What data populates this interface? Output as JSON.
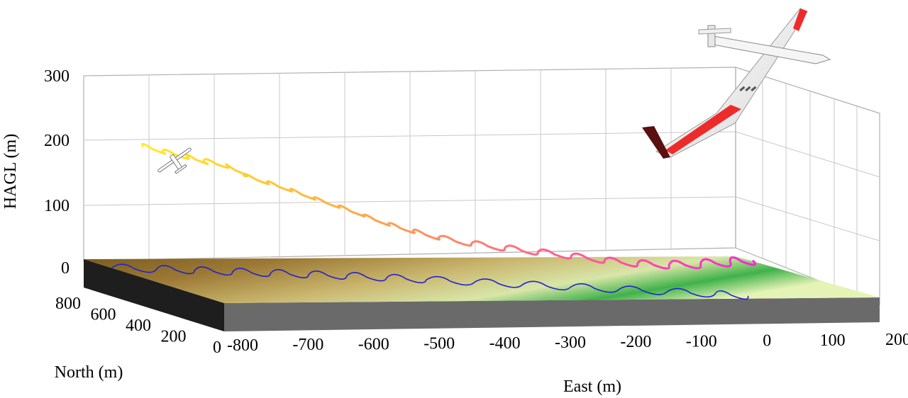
{
  "chart_data": {
    "type": "line3d",
    "title": "",
    "xlabel": "East (m)",
    "ylabel": "North (m)",
    "zlabel": "HAGL (m)",
    "xticks": [
      -800,
      -700,
      -600,
      -500,
      -400,
      -300,
      -200,
      -100,
      0,
      100,
      200
    ],
    "yticks": [
      800,
      600,
      400,
      200,
      0
    ],
    "zticks": [
      300,
      200,
      100,
      0
    ],
    "xlim": [
      -800,
      200
    ],
    "ylim": [
      0,
      800
    ],
    "zlim": [
      0,
      300
    ],
    "grid": true,
    "series": [
      {
        "name": "",
        "kind": "flight-path",
        "color_start": "#ffee22",
        "color_end": "#ff22dd",
        "points": [
          [
            -750,
            650,
            190
          ],
          [
            -720,
            650,
            180
          ],
          [
            -690,
            620,
            175
          ],
          [
            -670,
            600,
            168
          ],
          [
            -640,
            580,
            165
          ],
          [
            -620,
            560,
            150
          ],
          [
            -590,
            540,
            140
          ],
          [
            -560,
            520,
            130
          ],
          [
            -530,
            500,
            118
          ],
          [
            -500,
            470,
            108
          ],
          [
            -470,
            440,
            96
          ],
          [
            -440,
            410,
            84
          ],
          [
            -410,
            380,
            76
          ],
          [
            -380,
            350,
            68
          ],
          [
            -340,
            310,
            62
          ],
          [
            -300,
            270,
            58
          ],
          [
            -260,
            230,
            55
          ],
          [
            -220,
            190,
            52
          ],
          [
            -180,
            150,
            48
          ],
          [
            -140,
            110,
            46
          ],
          [
            -100,
            80,
            46
          ],
          [
            -60,
            50,
            50
          ],
          [
            -20,
            30,
            55
          ],
          [
            10,
            10,
            58
          ]
        ]
      },
      {
        "name": "",
        "kind": "ground-track",
        "color": "#2222cc",
        "points": [
          [
            -800,
            640,
            0
          ],
          [
            -740,
            610,
            0
          ],
          [
            -690,
            580,
            0
          ],
          [
            -640,
            550,
            0
          ],
          [
            -590,
            520,
            0
          ],
          [
            -540,
            490,
            0
          ],
          [
            -490,
            460,
            0
          ],
          [
            -440,
            420,
            0
          ],
          [
            -390,
            380,
            0
          ],
          [
            -330,
            330,
            0
          ],
          [
            -270,
            280,
            0
          ],
          [
            -210,
            230,
            0
          ],
          [
            -150,
            180,
            0
          ],
          [
            -90,
            130,
            0
          ],
          [
            -30,
            80,
            0
          ],
          [
            10,
            40,
            0
          ]
        ]
      }
    ]
  }
}
